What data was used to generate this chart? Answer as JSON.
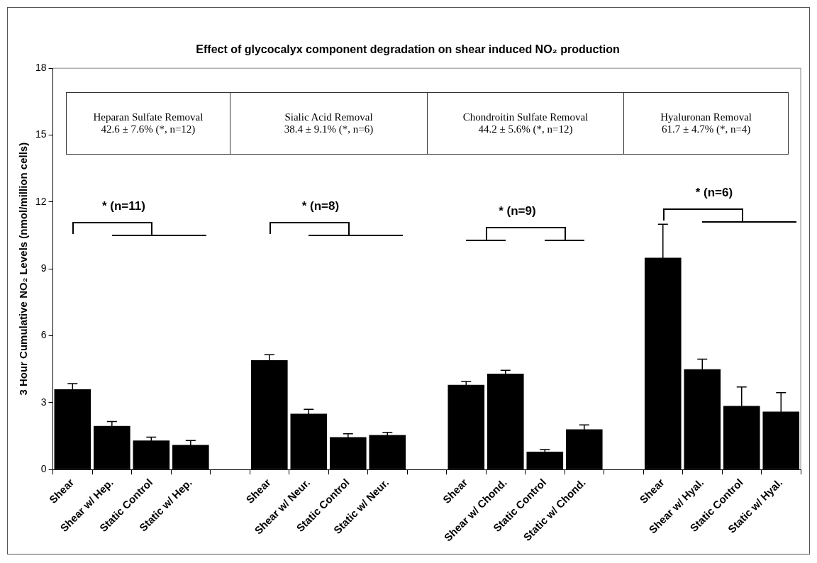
{
  "chart_data": {
    "type": "bar",
    "title": "Effect of glycocalyx component degradation on shear induced NO₂ production",
    "ylabel": "3 Hour Cumulative NO₂ Levels (nmol/million cells)",
    "categories": [
      "Shear",
      "Shear w/ Hep.",
      "Static Control",
      "Static w/ Hep.",
      null,
      "Shear",
      "Shear w/ Neur.",
      "Static Control",
      "Static w/ Neur.",
      null,
      "Shear",
      "Shear w/ Chond.",
      "Static Control",
      "Static w/ Chond.",
      null,
      "Shear",
      "Shear w/ Hyal.",
      "Static Control",
      "Static w/ Hyal."
    ],
    "values": [
      3.6,
      1.95,
      1.3,
      1.1,
      null,
      4.9,
      2.5,
      1.45,
      1.55,
      null,
      3.8,
      4.3,
      0.8,
      1.8,
      null,
      9.5,
      4.5,
      2.85,
      2.6
    ],
    "errors": [
      0.25,
      0.2,
      0.15,
      0.2,
      null,
      0.25,
      0.2,
      0.15,
      0.12,
      null,
      0.15,
      0.15,
      0.1,
      0.2,
      null,
      1.5,
      0.45,
      0.85,
      0.85
    ],
    "color": "#000000",
    "ylim": [
      0,
      18
    ],
    "yticks": [
      0,
      3,
      6,
      9,
      12,
      15,
      18
    ],
    "grid": false,
    "legend": false,
    "annotations": [
      "Heparan Sulfate Removal\n42.6 ± 7.6% (*, n=12)",
      "Sialic Acid Removal\n38.4 ± 9.1% (*, n=6)",
      "Chondroitin Sulfate Removal\n44.2 ± 5.6% (*, n=12)",
      "Hyaluronan Removal\n61.7 ± 4.7% (*, n=4)",
      "* (n=11)",
      "* (n=8)",
      "* (n=9)",
      "* (n=6)"
    ]
  }
}
